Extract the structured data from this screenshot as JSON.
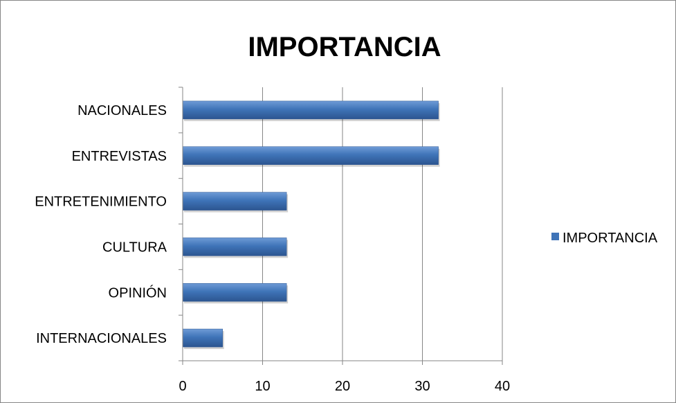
{
  "chart_data": {
    "type": "bar",
    "orientation": "horizontal",
    "title": "IMPORTANCIA",
    "categories": [
      "NACIONALES",
      "ENTREVISTAS",
      "ENTRETENIMIENTO",
      "CULTURA",
      "OPINIÓN",
      "INTERNACIONALES"
    ],
    "series": [
      {
        "name": "IMPORTANCIA",
        "values": [
          32,
          32,
          13,
          13,
          13,
          5
        ]
      }
    ],
    "xlim": [
      0,
      40
    ],
    "xticks": [
      "0",
      "10",
      "20",
      "30",
      "40"
    ],
    "xlabel": "",
    "ylabel": "",
    "grid": "vertical",
    "legend_position": "right",
    "colors": {
      "bar_main": "#3f74b8",
      "bar_dark": "#2c5590",
      "bar_light": "#6f9bd6",
      "grid": "#868686",
      "axis": "#868686",
      "frame": "#868686"
    }
  }
}
